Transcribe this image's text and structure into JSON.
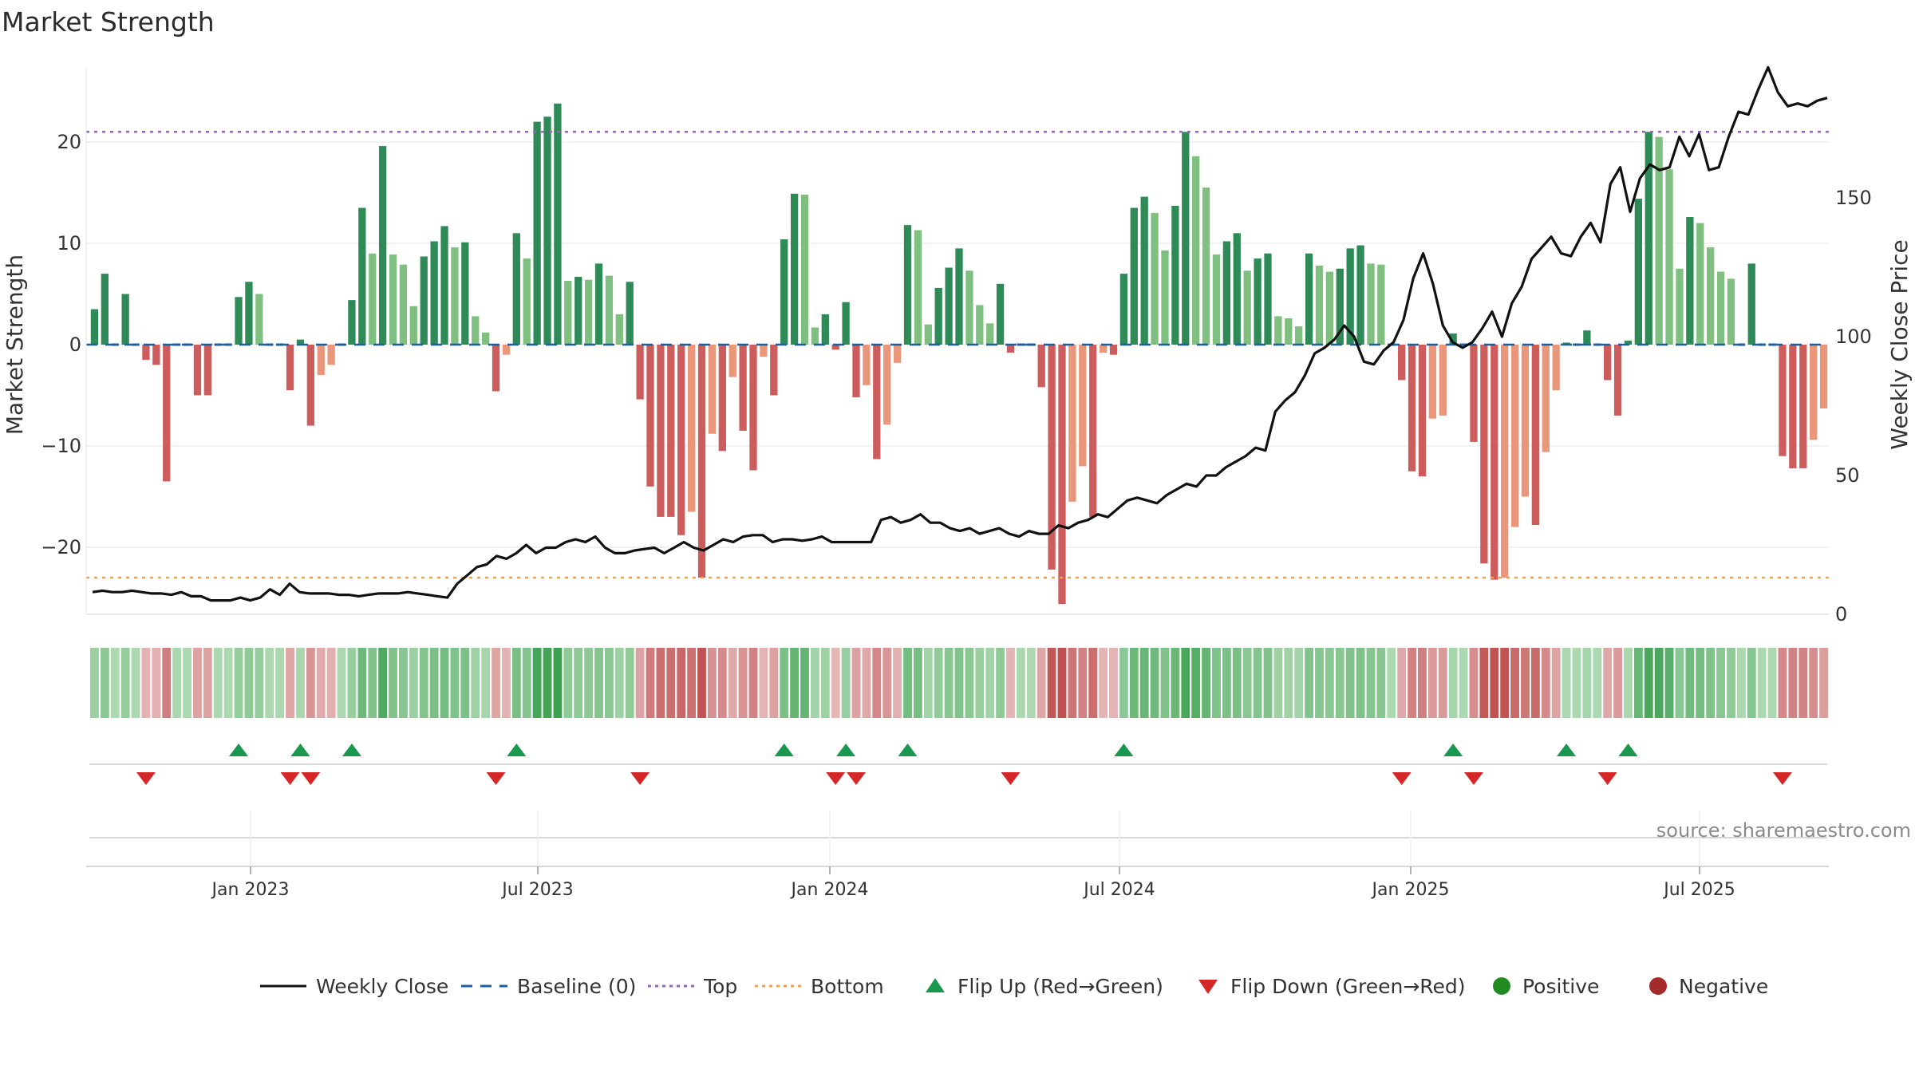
{
  "title": "Market Strength",
  "source_text": "source: sharemaestro.com",
  "colors": {
    "strong_green": "#2e8b57",
    "light_green": "#7fbf7f",
    "strong_red": "#cd5c5c",
    "light_red": "#e9967a",
    "close_line": "#111111",
    "baseline": "#1f5f9f",
    "top_line": "#9467bd",
    "bottom_line": "#f0a050",
    "flip_up": "#1a9850",
    "flip_down": "#d62728",
    "positive": "#228b22",
    "negative": "#a52a2a"
  },
  "legend": [
    {
      "label": "Weekly Close",
      "kind": "line"
    },
    {
      "label": "Baseline (0)",
      "kind": "dash"
    },
    {
      "label": "Top",
      "kind": "dot-purple"
    },
    {
      "label": "Bottom",
      "kind": "dot-orange"
    },
    {
      "label": "Flip Up (Red→Green)",
      "kind": "tri-up"
    },
    {
      "label": "Flip Down (Green→Red)",
      "kind": "tri-down"
    },
    {
      "label": "Positive",
      "kind": "circle-green"
    },
    {
      "label": "Negative",
      "kind": "circle-red"
    }
  ],
  "chart_data": {
    "type": "bar",
    "ylabel": "Market Strength",
    "y2label": "Weekly Close Price",
    "ylim": [
      -26,
      28
    ],
    "y2lim": [
      0,
      200
    ],
    "yticks": [
      -20,
      -10,
      0,
      10,
      20
    ],
    "y2ticks": [
      0,
      50,
      100,
      150
    ],
    "top_level": 21,
    "bottom_level": -23,
    "x_tick_labels": [
      "Jan 2023",
      "Jul 2023",
      "Jan 2024",
      "Jul 2024",
      "Jan 2025",
      "Jul 2025"
    ],
    "strength": [
      3.5,
      7,
      0,
      5,
      0,
      -1.5,
      -2,
      -13.5,
      0,
      0,
      -5,
      -5,
      0,
      0,
      4.7,
      6.2,
      5,
      0,
      0,
      -4.5,
      0.5,
      -8,
      -3,
      -2,
      0,
      4.4,
      13.5,
      9,
      19.6,
      8.9,
      7.9,
      3.8,
      8.7,
      10.2,
      11.7,
      9.6,
      10.1,
      2.8,
      1.2,
      -4.6,
      -1,
      11,
      8.5,
      22,
      22.5,
      23.8,
      6.3,
      6.7,
      6.4,
      8,
      6.8,
      3,
      6.2,
      -5.4,
      -14,
      -17,
      -17,
      -18.8,
      -16.5,
      -23,
      -8.8,
      -10.5,
      -3.2,
      -8.5,
      -12.4,
      -1.2,
      -5,
      10.4,
      14.9,
      14.8,
      1.7,
      3,
      -0.5,
      4.2,
      -5.2,
      -4,
      -11.3,
      -7.9,
      -1.8,
      11.8,
      11.3,
      2,
      5.6,
      7.6,
      9.5,
      7.3,
      3.9,
      2.1,
      6,
      -0.8,
      0,
      0,
      -4.2,
      -22.2,
      -25.6,
      -15.5,
      -12,
      -17,
      -0.8,
      -1,
      7,
      13.5,
      14.6,
      13,
      9.3,
      13.7,
      21,
      18.6,
      15.5,
      8.9,
      10.2,
      11,
      7.3,
      8.5,
      9,
      2.8,
      2.6,
      1.8,
      9,
      7.8,
      7.2,
      7.5,
      9.5,
      9.8,
      8,
      7.9,
      0,
      -3.5,
      -12.5,
      -13,
      -7.3,
      -7,
      1.1,
      0,
      -9.6,
      -21.6,
      -23.2,
      -23,
      -18,
      -15,
      -17.8,
      -10.6,
      -4.5,
      0.2,
      0,
      1.4,
      0,
      -3.5,
      -7,
      0.4,
      14.4,
      21,
      20.5,
      17.3,
      7.5,
      12.6,
      12,
      9.6,
      7.2,
      6.5,
      0,
      8,
      0,
      0,
      -11,
      -12.2,
      -12.2,
      -9.4,
      -6.3
    ],
    "close_start_label": "Weekly Close",
    "close": [
      8,
      8.5,
      8,
      8,
      8.5,
      8,
      7.5,
      7.5,
      7,
      8,
      6.5,
      6.5,
      5,
      5,
      5,
      6,
      5,
      6,
      9,
      7,
      11,
      8,
      7.5,
      7.5,
      7.5,
      7,
      7,
      6.5,
      7,
      7.5,
      7.5,
      7.5,
      8,
      7.5,
      7,
      6.5,
      6,
      11,
      14,
      17,
      18,
      21,
      20,
      22,
      25,
      22,
      24,
      24,
      26,
      27,
      26,
      28,
      24,
      22,
      22,
      23,
      23.5,
      24,
      22,
      24,
      26,
      24,
      23,
      25,
      27,
      26,
      28,
      28.5,
      28.5,
      26,
      27,
      27,
      26.5,
      27,
      28,
      26,
      26,
      26,
      26,
      26,
      34,
      35,
      33,
      34,
      36,
      33,
      33,
      31,
      30,
      31,
      29,
      30,
      31,
      29,
      28,
      30,
      29,
      29,
      32,
      31,
      33,
      34,
      36,
      35,
      38,
      41,
      42,
      41,
      40,
      43,
      45,
      47,
      46,
      50,
      50,
      53,
      55,
      57,
      60,
      59,
      73,
      77,
      80,
      86,
      94,
      96,
      99,
      104,
      100,
      91,
      90,
      95,
      98,
      106,
      121,
      130,
      119,
      104,
      98,
      96,
      98,
      103,
      109,
      100,
      112,
      118,
      128,
      132,
      136,
      130,
      129,
      136,
      141,
      134,
      155,
      161,
      145,
      157,
      162,
      160,
      161,
      172,
      165,
      173,
      160,
      161,
      172,
      181,
      180,
      189,
      197,
      188,
      183,
      184,
      183,
      185,
      186
    ]
  }
}
